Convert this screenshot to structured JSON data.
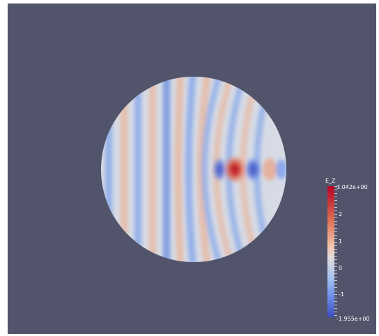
{
  "viewport": {
    "background": "#52546b",
    "field": {
      "shape": "disk",
      "colormap": "cool-to-warm",
      "colors": {
        "high": "#b40426",
        "mid": "#dddcdc",
        "low": "#3b4cc0"
      }
    }
  },
  "colorbar": {
    "title": "E_Z",
    "max_label": "3.042e+00",
    "min_label": "-1.955e+00",
    "tick_labels": [
      "2",
      "1",
      "0",
      "-1"
    ]
  }
}
